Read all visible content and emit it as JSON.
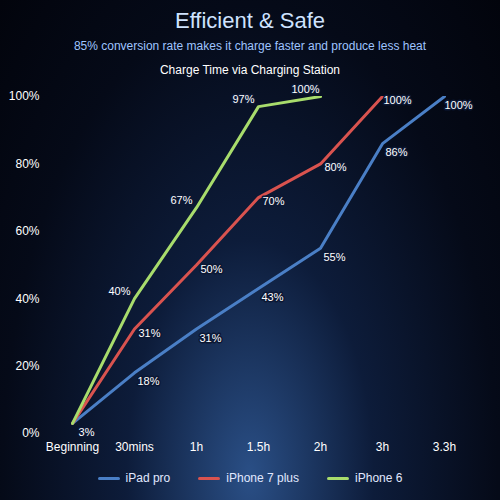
{
  "chart_data": {
    "type": "line",
    "title": "Efficient & Safe",
    "subtitle": "85% conversion rate makes it charge faster and produce less heat",
    "annotations": [
      "Charge Time via Charging Station"
    ],
    "categories": [
      "Beginning",
      "30mins",
      "1h",
      "1.5h",
      "2h",
      "3h",
      "3.3h"
    ],
    "series": [
      {
        "name": "iPad pro",
        "color": "#4a7fc6",
        "values": [
          3,
          18,
          31,
          43,
          55,
          86,
          100
        ],
        "value_labels": [
          "3%",
          "18%",
          "31%",
          "43%",
          "55%",
          "86%",
          "100%"
        ]
      },
      {
        "name": "iPhone 7 plus",
        "color": "#d9534f",
        "values": [
          3,
          31,
          50,
          70,
          80,
          100,
          null
        ],
        "value_labels": [
          null,
          "31%",
          "50%",
          "70%",
          "80%",
          "100%",
          null
        ]
      },
      {
        "name": "iPhone 6",
        "color": "#a8dc6c",
        "values": [
          3,
          40,
          67,
          97,
          100,
          null,
          null
        ],
        "value_labels": [
          null,
          "40%",
          "67%",
          "97%",
          "100%",
          null,
          null
        ]
      }
    ],
    "ylim": [
      0,
      100
    ],
    "yticks": [
      {
        "value": 0,
        "label": "0%"
      },
      {
        "value": 20,
        "label": "20%"
      },
      {
        "value": 40,
        "label": "40%"
      },
      {
        "value": 60,
        "label": "60%"
      },
      {
        "value": 80,
        "label": "80%"
      },
      {
        "value": 100,
        "label": "100%"
      }
    ],
    "grid": false,
    "data_labels": true,
    "legend": "bottom"
  }
}
